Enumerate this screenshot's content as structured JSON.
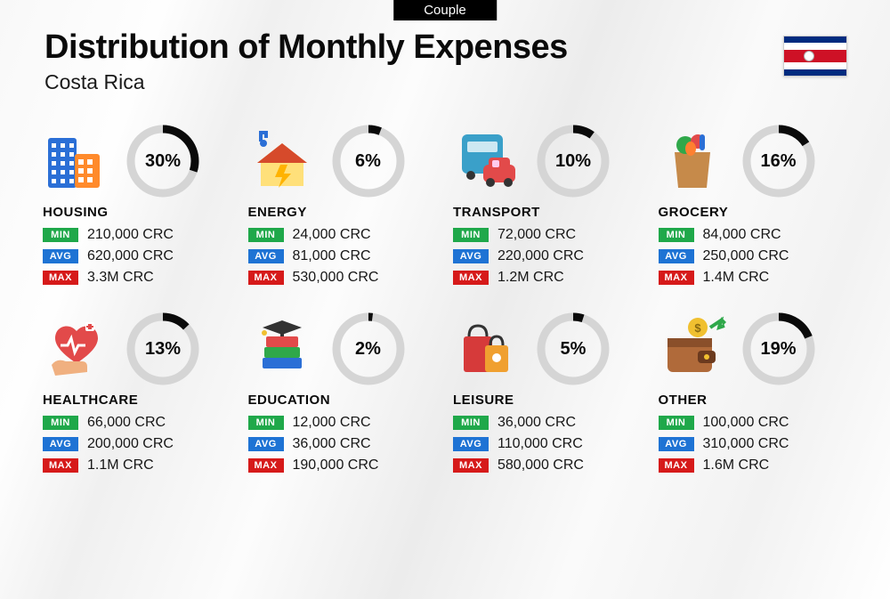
{
  "badge": "Couple",
  "title": "Distribution of Monthly Expenses",
  "subtitle": "Costa Rica",
  "flag_colors": {
    "blue": "#002b7f",
    "white": "#ffffff",
    "red": "#ce1126"
  },
  "labels": {
    "min": "MIN",
    "avg": "AVG",
    "max": "MAX"
  },
  "label_colors": {
    "min": "#1fa84a",
    "avg": "#1e73d4",
    "max": "#d61a1a"
  },
  "donut": {
    "radius": 36,
    "stroke_width": 9,
    "bg_color": "#d5d5d5",
    "fg_color": "#0a0a0a"
  },
  "categories": [
    {
      "key": "housing",
      "name": "HOUSING",
      "pct": 30,
      "min": "210,000 CRC",
      "avg": "620,000 CRC",
      "max": "3.3M CRC"
    },
    {
      "key": "energy",
      "name": "ENERGY",
      "pct": 6,
      "min": "24,000 CRC",
      "avg": "81,000 CRC",
      "max": "530,000 CRC"
    },
    {
      "key": "transport",
      "name": "TRANSPORT",
      "pct": 10,
      "min": "72,000 CRC",
      "avg": "220,000 CRC",
      "max": "1.2M CRC"
    },
    {
      "key": "grocery",
      "name": "GROCERY",
      "pct": 16,
      "min": "84,000 CRC",
      "avg": "250,000 CRC",
      "max": "1.4M CRC"
    },
    {
      "key": "healthcare",
      "name": "HEALTHCARE",
      "pct": 13,
      "min": "66,000 CRC",
      "avg": "200,000 CRC",
      "max": "1.1M CRC"
    },
    {
      "key": "education",
      "name": "EDUCATION",
      "pct": 2,
      "min": "12,000 CRC",
      "avg": "36,000 CRC",
      "max": "190,000 CRC"
    },
    {
      "key": "leisure",
      "name": "LEISURE",
      "pct": 5,
      "min": "36,000 CRC",
      "avg": "110,000 CRC",
      "max": "580,000 CRC"
    },
    {
      "key": "other",
      "name": "OTHER",
      "pct": 19,
      "min": "100,000 CRC",
      "avg": "310,000 CRC",
      "max": "1.6M CRC"
    }
  ],
  "icons": {
    "housing": {
      "type": "buildings",
      "c1": "#2b6fd6",
      "c2": "#ff8a2b"
    },
    "energy": {
      "type": "house-bolt",
      "roof": "#d64a2b",
      "wall": "#ffe07a",
      "bolt": "#ffb300",
      "plug": "#2b6fd6"
    },
    "transport": {
      "type": "bus-car",
      "bus": "#3aa0c9",
      "car": "#e24a4a"
    },
    "grocery": {
      "type": "bag-veg",
      "bag": "#c68a4a",
      "veg1": "#2fa84a",
      "veg2": "#e24a4a",
      "veg3": "#2b6fd6"
    },
    "healthcare": {
      "type": "heart-hand",
      "heart": "#e24a4a",
      "hand": "#f0b080",
      "pulse": "#ffffff"
    },
    "education": {
      "type": "books-cap",
      "b1": "#e24a4a",
      "b2": "#2fa84a",
      "b3": "#2b6fd6",
      "cap": "#333333"
    },
    "leisure": {
      "type": "shopping-bags",
      "bag1": "#d63a3a",
      "bag2": "#f0a030"
    },
    "other": {
      "type": "wallet-coin",
      "wallet": "#b06a3a",
      "coin": "#f0c030",
      "arrow": "#2fa84a"
    }
  }
}
